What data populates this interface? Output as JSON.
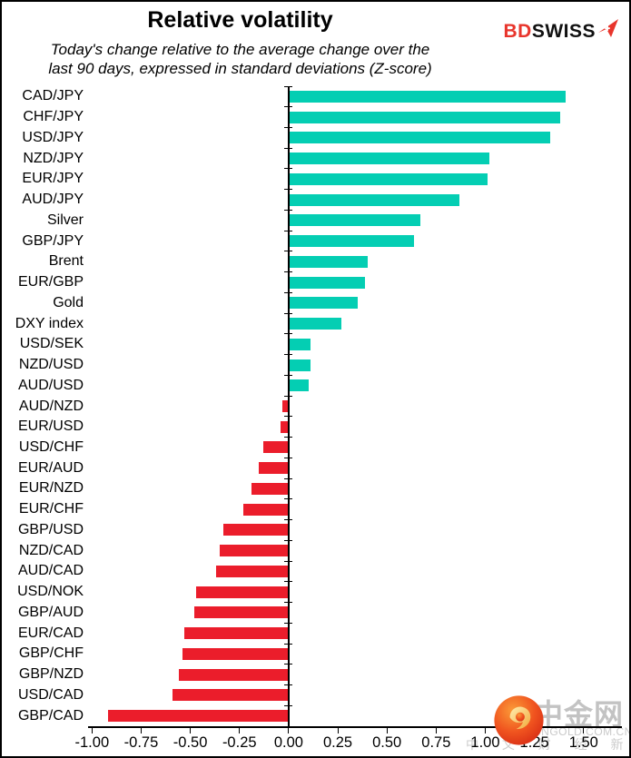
{
  "header": {
    "title": "Relative volatility",
    "subtitle_line1": "Today's change relative to the average change over the",
    "subtitle_line2": "last 90 days, expressed in standard deviations (Z-score)",
    "logo": {
      "bd": "BD",
      "swiss": "SWISS"
    }
  },
  "chart_data": {
    "type": "bar",
    "orientation": "horizontal",
    "title": "Relative volatility",
    "xlabel": "",
    "ylabel": "",
    "categories": [
      "CAD/JPY",
      "CHF/JPY",
      "USD/JPY",
      "NZD/JPY",
      "EUR/JPY",
      "AUD/JPY",
      "Silver",
      "GBP/JPY",
      "Brent",
      "EUR/GBP",
      "Gold",
      "DXY index",
      "USD/SEK",
      "NZD/USD",
      "AUD/USD",
      "AUD/NZD",
      "EUR/USD",
      "USD/CHF",
      "EUR/AUD",
      "EUR/NZD",
      "EUR/CHF",
      "GBP/USD",
      "NZD/CAD",
      "AUD/CAD",
      "USD/NOK",
      "GBP/AUD",
      "EUR/CAD",
      "GBP/CHF",
      "GBP/NZD",
      "USD/CAD",
      "GBP/CAD"
    ],
    "values": [
      1.41,
      1.38,
      1.33,
      1.02,
      1.01,
      0.87,
      0.67,
      0.64,
      0.4,
      0.39,
      0.35,
      0.27,
      0.11,
      0.11,
      0.1,
      -0.03,
      -0.04,
      -0.13,
      -0.15,
      -0.19,
      -0.23,
      -0.33,
      -0.35,
      -0.37,
      -0.47,
      -0.48,
      -0.53,
      -0.54,
      -0.56,
      -0.59,
      -0.92
    ],
    "xlim": [
      -1.02,
      1.695
    ],
    "xticks": [
      -1.0,
      -0.75,
      -0.5,
      -0.25,
      0.0,
      0.25,
      0.5,
      0.75,
      1.0,
      1.25,
      1.5
    ],
    "xtick_labels": [
      "-1.00",
      "-0.75",
      "-0.50",
      "-0.25",
      "0.00",
      "0.25",
      "0.50",
      "0.75",
      "1.00",
      "1.25",
      "1.50"
    ],
    "positive_color": "#04ceb3",
    "negative_color": "#eb1d2b",
    "grid": false,
    "legend": null
  },
  "watermark": {
    "name": "中金网",
    "domain": "CNGOLD.COM.CN",
    "tagline": "中 文 财 经 新 媒 体"
  }
}
